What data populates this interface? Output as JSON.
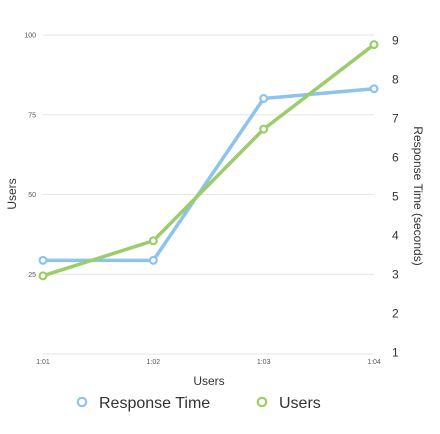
{
  "chart_data": {
    "type": "line",
    "x": [
      "1:01",
      "1:02",
      "1:03",
      "1:04"
    ],
    "xlabel": "Users",
    "ylabel_left": "Users",
    "ylabel_right": "Response Time (seconds)",
    "left_axis": {
      "range": [
        0,
        100
      ],
      "ticks": [
        25,
        50,
        75,
        100
      ]
    },
    "right_axis": {
      "range": [
        1,
        9
      ],
      "ticks": [
        1,
        2,
        3,
        4,
        5,
        6,
        7,
        8,
        9
      ]
    },
    "grid": true,
    "legend_position": "bottom",
    "series": [
      {
        "name": "Response Time",
        "axis": "right",
        "color": "#8dc3ec",
        "values": [
          3.35,
          3.35,
          7.5,
          7.75
        ]
      },
      {
        "name": "Users",
        "axis": "left",
        "color": "#9bcd6a",
        "values": [
          24.5,
          35.5,
          70.5,
          97
        ]
      }
    ]
  }
}
